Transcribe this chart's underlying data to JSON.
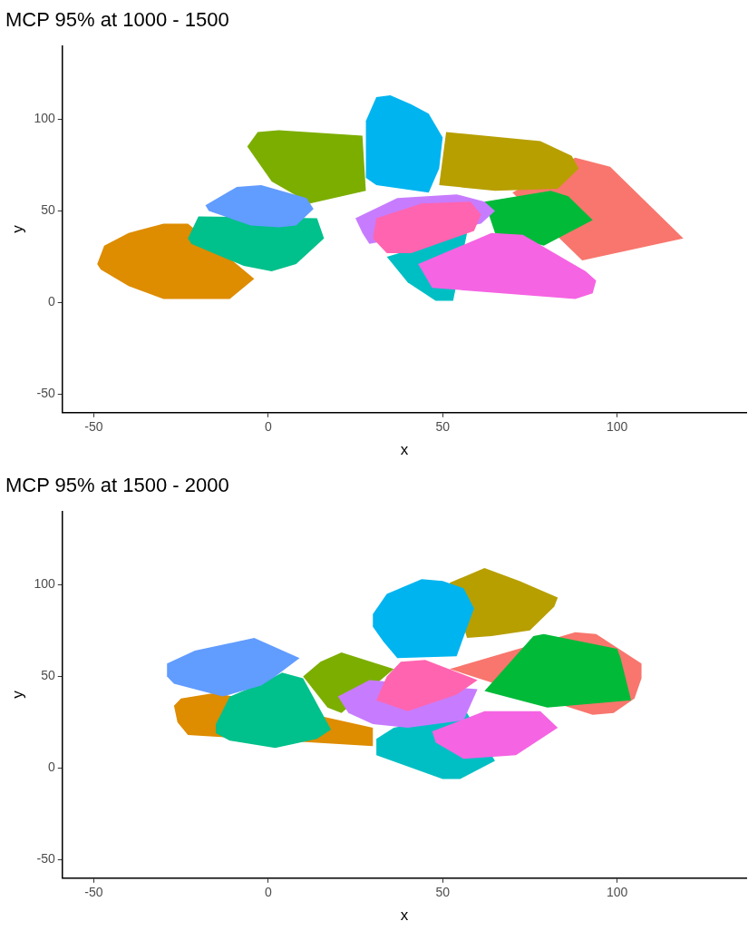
{
  "chart_data": [
    {
      "type": "area",
      "title": "MCP 95% at 1000 - 1500",
      "xlabel": "x",
      "ylabel": "y",
      "xlim": [
        -59,
        137
      ],
      "xticks": [
        -50,
        0,
        50,
        100
      ],
      "ylim": [
        -60,
        140
      ],
      "yticks": [
        -50,
        0,
        50,
        100
      ],
      "grid": false,
      "legend": false,
      "series": [
        {
          "color": "#f8766d",
          "x": [
            70,
            88,
            98,
            119,
            90
          ],
          "values": [
            60,
            79,
            74,
            35,
            23
          ]
        },
        {
          "color": "#de8c00",
          "x": [
            -49,
            -47,
            -40,
            -30,
            -23,
            null,
            -4,
            -11,
            -30,
            -40,
            -48
          ],
          "values": [
            21,
            31,
            38,
            43,
            43,
            null,
            13,
            2,
            2,
            9,
            18
          ]
        },
        {
          "color": "#b79f00",
          "x": [
            51,
            78,
            87,
            89,
            83,
            65,
            49
          ],
          "values": [
            93,
            88,
            80,
            73,
            62,
            61,
            64
          ]
        },
        {
          "color": "#7cae00",
          "x": [
            -6,
            -3,
            3,
            27,
            28,
            12,
            1
          ],
          "values": [
            85,
            93,
            94,
            91,
            61,
            54,
            66
          ]
        },
        {
          "color": "#00ba38",
          "x": [
            62,
            81,
            86,
            93,
            79,
            65
          ],
          "values": [
            55,
            61,
            58,
            45,
            31,
            38
          ]
        },
        {
          "color": "#00c08b",
          "x": [
            -23,
            -20,
            14,
            16,
            8,
            1,
            -7,
            -22
          ],
          "values": [
            35,
            47,
            46,
            35,
            21,
            17,
            20,
            32
          ]
        },
        {
          "color": "#00bfc4",
          "x": [
            34,
            null,
            57,
            null,
            53,
            48,
            40
          ],
          "values": [
            25,
            null,
            38,
            null,
            1,
            1,
            11
          ]
        },
        {
          "color": "#00b4f0",
          "x": [
            28,
            31,
            35,
            41,
            46,
            50,
            49,
            46,
            31,
            28
          ],
          "values": [
            99,
            112,
            113,
            108,
            103,
            90,
            73,
            60,
            64,
            68
          ]
        },
        {
          "color": "#619cff",
          "x": [
            -18,
            -9,
            -2,
            11,
            13,
            8,
            3,
            -5,
            -17
          ],
          "values": [
            53,
            63,
            64,
            57,
            51,
            42,
            41,
            42,
            50
          ]
        },
        {
          "color": "#c77cff",
          "x": [
            25,
            37,
            54,
            62,
            65,
            61,
            29,
            27
          ],
          "values": [
            46,
            57,
            59,
            55,
            50,
            43,
            32,
            38
          ]
        },
        {
          "color": "#f564e3",
          "x": [
            43,
            64,
            73,
            91,
            94,
            93,
            88,
            47
          ],
          "values": [
            21,
            38,
            37,
            17,
            12,
            5,
            2,
            8
          ]
        },
        {
          "color": "#ff64b0",
          "x": [
            31,
            44,
            58,
            61,
            59,
            41,
            34,
            30
          ],
          "values": [
            46,
            54,
            55,
            48,
            39,
            27,
            27,
            35
          ]
        }
      ]
    },
    {
      "type": "area",
      "title": "MCP 95% at 1500 - 2000",
      "xlabel": "x",
      "ylabel": "y",
      "xlim": [
        -59,
        137
      ],
      "xticks": [
        -50,
        0,
        50,
        100
      ],
      "ylim": [
        -60,
        140
      ],
      "yticks": [
        -50,
        0,
        50,
        100
      ],
      "grid": false,
      "legend": false,
      "series": [
        {
          "color": "#f8766d",
          "x": [
            52,
            88,
            94,
            107,
            107,
            105,
            99,
            93,
            null
          ],
          "values": [
            54,
            74,
            73,
            57,
            49,
            38,
            30,
            29,
            null
          ]
        },
        {
          "color": "#de8c00",
          "x": [
            -27,
            -25,
            -15,
            30,
            30,
            -23,
            -26
          ],
          "values": [
            34,
            38,
            41,
            22,
            12,
            18,
            25
          ]
        },
        {
          "color": "#b79f00",
          "x": [
            52,
            62,
            72,
            83,
            82,
            75,
            64,
            57
          ],
          "values": [
            101,
            109,
            102,
            93,
            88,
            75,
            72,
            71
          ]
        },
        {
          "color": "#7cae00",
          "x": [
            10,
            15,
            21,
            36,
            21,
            17
          ],
          "values": [
            50,
            58,
            63,
            54,
            30,
            33
          ]
        },
        {
          "color": "#00ba38",
          "x": [
            62,
            76,
            79,
            100,
            101,
            104,
            80,
            null
          ],
          "values": [
            42,
            72,
            73,
            65,
            60,
            37,
            33,
            null
          ]
        },
        {
          "color": "#00c08b",
          "x": [
            -15,
            -11,
            -1,
            4,
            10,
            18,
            14,
            2,
            -11,
            -15
          ],
          "values": [
            24,
            39,
            47,
            52,
            49,
            21,
            16,
            11,
            15,
            19
          ]
        },
        {
          "color": "#00bfc4",
          "x": [
            31,
            36,
            57,
            65,
            55,
            50,
            31
          ],
          "values": [
            16,
            22,
            30,
            4,
            -6,
            -6,
            7
          ]
        },
        {
          "color": "#00b4f0",
          "x": [
            30,
            34,
            44,
            50,
            56,
            59,
            54,
            37,
            33,
            30
          ],
          "values": [
            84,
            95,
            103,
            102,
            98,
            87,
            61,
            60,
            69,
            77
          ]
        },
        {
          "color": "#619cff",
          "x": [
            -29,
            -21,
            -4,
            9,
            2,
            -2,
            -13,
            -27,
            -29
          ],
          "values": [
            57,
            64,
            71,
            60,
            50,
            45,
            39,
            46,
            50
          ]
        },
        {
          "color": "#c77cff",
          "x": [
            20,
            29,
            60,
            56,
            40,
            30,
            23
          ],
          "values": [
            39,
            48,
            43,
            26,
            22,
            24,
            30
          ]
        },
        {
          "color": "#f564e3",
          "x": [
            47,
            62,
            78,
            83,
            71,
            56,
            48
          ],
          "values": [
            20,
            31,
            31,
            22,
            7,
            5,
            14
          ]
        },
        {
          "color": "#ff64b0",
          "x": [
            31,
            34,
            38,
            45,
            60,
            54,
            40
          ],
          "values": [
            37,
            50,
            58,
            59,
            48,
            40,
            31
          ]
        }
      ]
    }
  ]
}
